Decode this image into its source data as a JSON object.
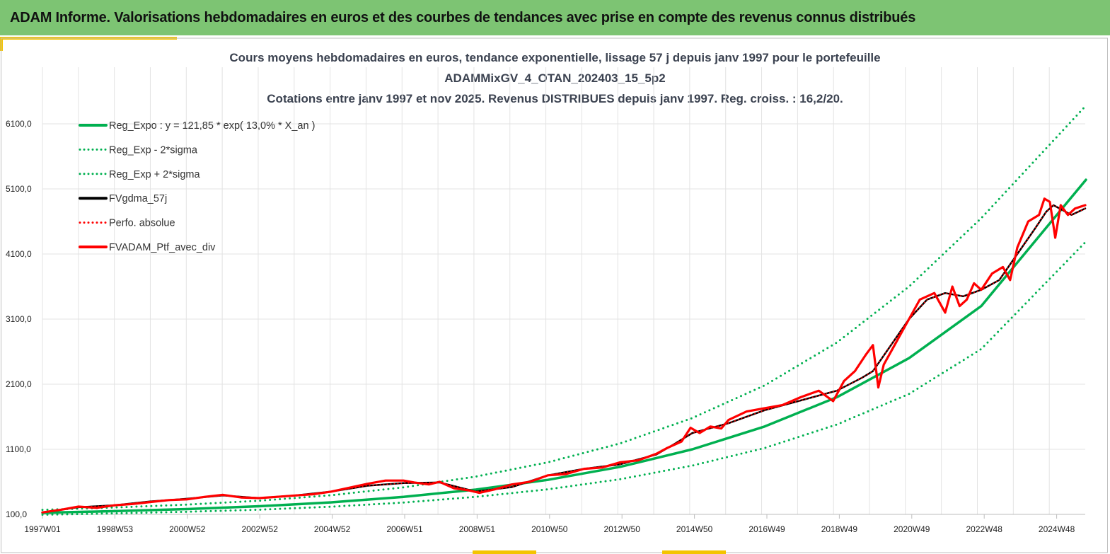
{
  "banner": {
    "title": "ADAM Informe. Valorisations hebdomadaires en euros et des courbes de tendances avec prise en compte des revenus connus distribués"
  },
  "chart_data": {
    "type": "line",
    "title_lines": [
      "Cours moyens hebdomadaires  en euros, tendance exponentielle, lissage 57 j depuis janv 1997 pour le portefeuille",
      "ADAMMixGV_4_OTAN_202403_15_5p2",
      "Cotations  entre janv 1997 et nov 2025. Revenus DISTRIBUES depuis janv 1997. Reg. croiss. : 16,2/20."
    ],
    "xlabel": "",
    "ylabel": "",
    "x_ticks": [
      "1997W01",
      "1998W53",
      "2000W52",
      "2002W52",
      "2004W52",
      "2006W51",
      "2008W51",
      "2010W50",
      "2012W50",
      "2014W50",
      "2016W49",
      "2018W49",
      "2020W49",
      "2022W48",
      "2024W48"
    ],
    "y_ticks": [
      "100,0",
      "1100,0",
      "2100,0",
      "3100,0",
      "4100,0",
      "5100,0",
      "6100,0"
    ],
    "ylim": [
      100,
      6900
    ],
    "xlim": [
      1997.0,
      2025.88
    ],
    "grid": true,
    "legend_position": "top-left",
    "colors": {
      "green": "#00b050",
      "black": "#000000",
      "red": "#ff0000"
    },
    "series": [
      {
        "name": "Reg_Expo : y = 121,85 * exp( 13,0% *  X_an )",
        "color": "#00b050",
        "style": "solid",
        "x": [
          1997,
          1999,
          2001,
          2003,
          2005,
          2007,
          2009,
          2011,
          2013,
          2015,
          2017,
          2019,
          2021,
          2023,
          2025.9
        ],
        "values": [
          125,
          150,
          182,
          225,
          285,
          370,
          480,
          630,
          830,
          1100,
          1450,
          1900,
          2500,
          3300,
          5240
        ]
      },
      {
        "name": "Reg_Exp - 2*sigma",
        "color": "#00b050",
        "style": "dotted",
        "x": [
          1997,
          1999,
          2001,
          2003,
          2005,
          2007,
          2009,
          2011,
          2013,
          2015,
          2017,
          2019,
          2021,
          2023,
          2025.9
        ],
        "values": [
          95,
          115,
          140,
          172,
          218,
          282,
          370,
          485,
          640,
          850,
          1120,
          1480,
          1950,
          2640,
          4290
        ]
      },
      {
        "name": "Reg_Exp + 2*sigma",
        "color": "#00b050",
        "style": "dotted",
        "x": [
          1997,
          1999,
          2001,
          2003,
          2005,
          2007,
          2009,
          2011,
          2013,
          2015,
          2017,
          2019,
          2021,
          2023,
          2025.9
        ],
        "values": [
          170,
          205,
          250,
          310,
          395,
          515,
          680,
          900,
          1190,
          1580,
          2080,
          2740,
          3600,
          4650,
          6380
        ]
      },
      {
        "name": "FVgdma_57j",
        "color": "#000000",
        "style": "solid",
        "x": [
          1997,
          1998,
          1999,
          2000,
          2001,
          2002,
          2003,
          2004,
          2005,
          2006,
          2007,
          2008,
          2009,
          2010,
          2011,
          2012,
          2013,
          2014,
          2014.5,
          2015,
          2016,
          2017,
          2018,
          2019,
          2019.7,
          2020,
          2020.5,
          2021,
          2021.5,
          2022,
          2022.5,
          2023,
          2023.5,
          2024,
          2024.5,
          2024.8,
          2025,
          2025.5,
          2025.88
        ],
        "values": [
          130,
          210,
          240,
          300,
          340,
          390,
          350,
          390,
          450,
          540,
          580,
          590,
          450,
          520,
          700,
          800,
          870,
          1020,
          1180,
          1350,
          1500,
          1700,
          1850,
          2000,
          2200,
          2300,
          2700,
          3100,
          3400,
          3500,
          3450,
          3550,
          3700,
          4100,
          4500,
          4750,
          4850,
          4700,
          4800
        ]
      },
      {
        "name": "Perfo. absolue",
        "color": "#ff0000",
        "style": "dotted",
        "x": [
          1997,
          1998,
          1999,
          2000,
          2001,
          2002,
          2003,
          2004,
          2005,
          2006,
          2007,
          2008,
          2009,
          2010,
          2011,
          2012,
          2013,
          2014,
          2014.5,
          2015,
          2016,
          2017,
          2018,
          2019,
          2019.7,
          2020,
          2020.5,
          2021,
          2021.5,
          2022,
          2022.5,
          2023,
          2023.5,
          2024,
          2024.5,
          2024.8,
          2025,
          2025.5,
          2025.88
        ],
        "values": [
          130,
          210,
          240,
          300,
          340,
          390,
          350,
          390,
          450,
          540,
          580,
          590,
          450,
          520,
          700,
          800,
          870,
          1020,
          1180,
          1350,
          1500,
          1700,
          1850,
          2000,
          2200,
          2300,
          2700,
          3100,
          3400,
          3500,
          3450,
          3550,
          3700,
          4100,
          4500,
          4750,
          4850,
          4700,
          4800
        ]
      },
      {
        "name": "FVADAM_Ptf_avec_div",
        "color": "#ff0000",
        "style": "solid",
        "x": [
          1997,
          1997.5,
          1998,
          1998.5,
          1999,
          1999.5,
          2000,
          2000.5,
          2001,
          2001.5,
          2002,
          2002.5,
          2003,
          2003.5,
          2004,
          2004.5,
          2005,
          2005.5,
          2006,
          2006.5,
          2007,
          2007.3,
          2007.7,
          2008,
          2008.4,
          2008.8,
          2009.1,
          2009.5,
          2010,
          2010.5,
          2011,
          2011.5,
          2012,
          2012.5,
          2013,
          2013.5,
          2014,
          2014.3,
          2014.7,
          2014.95,
          2015.2,
          2015.5,
          2015.8,
          2016,
          2016.5,
          2017,
          2017.5,
          2018,
          2018.5,
          2018.9,
          2019.2,
          2019.5,
          2019.8,
          2020.0,
          2020.15,
          2020.3,
          2020.6,
          2021,
          2021.3,
          2021.7,
          2022,
          2022.2,
          2022.4,
          2022.6,
          2022.8,
          2023,
          2023.3,
          2023.6,
          2023.8,
          2024,
          2024.3,
          2024.6,
          2024.75,
          2024.9,
          2025.05,
          2025.2,
          2025.4,
          2025.6,
          2025.88
        ],
        "values": [
          130,
          170,
          220,
          200,
          240,
          260,
          290,
          320,
          330,
          370,
          400,
          360,
          350,
          370,
          390,
          410,
          450,
          510,
          570,
          620,
          620,
          590,
          560,
          600,
          500,
          470,
          430,
          480,
          560,
          600,
          700,
          720,
          800,
          820,
          900,
          930,
          1030,
          1120,
          1220,
          1430,
          1350,
          1450,
          1420,
          1550,
          1680,
          1730,
          1780,
          1900,
          2000,
          1840,
          2150,
          2300,
          2550,
          2700,
          2050,
          2400,
          2700,
          3100,
          3400,
          3500,
          3200,
          3600,
          3300,
          3400,
          3650,
          3550,
          3800,
          3900,
          3700,
          4200,
          4600,
          4700,
          4950,
          4900,
          4350,
          4850,
          4700,
          4800,
          4850
        ]
      }
    ]
  }
}
